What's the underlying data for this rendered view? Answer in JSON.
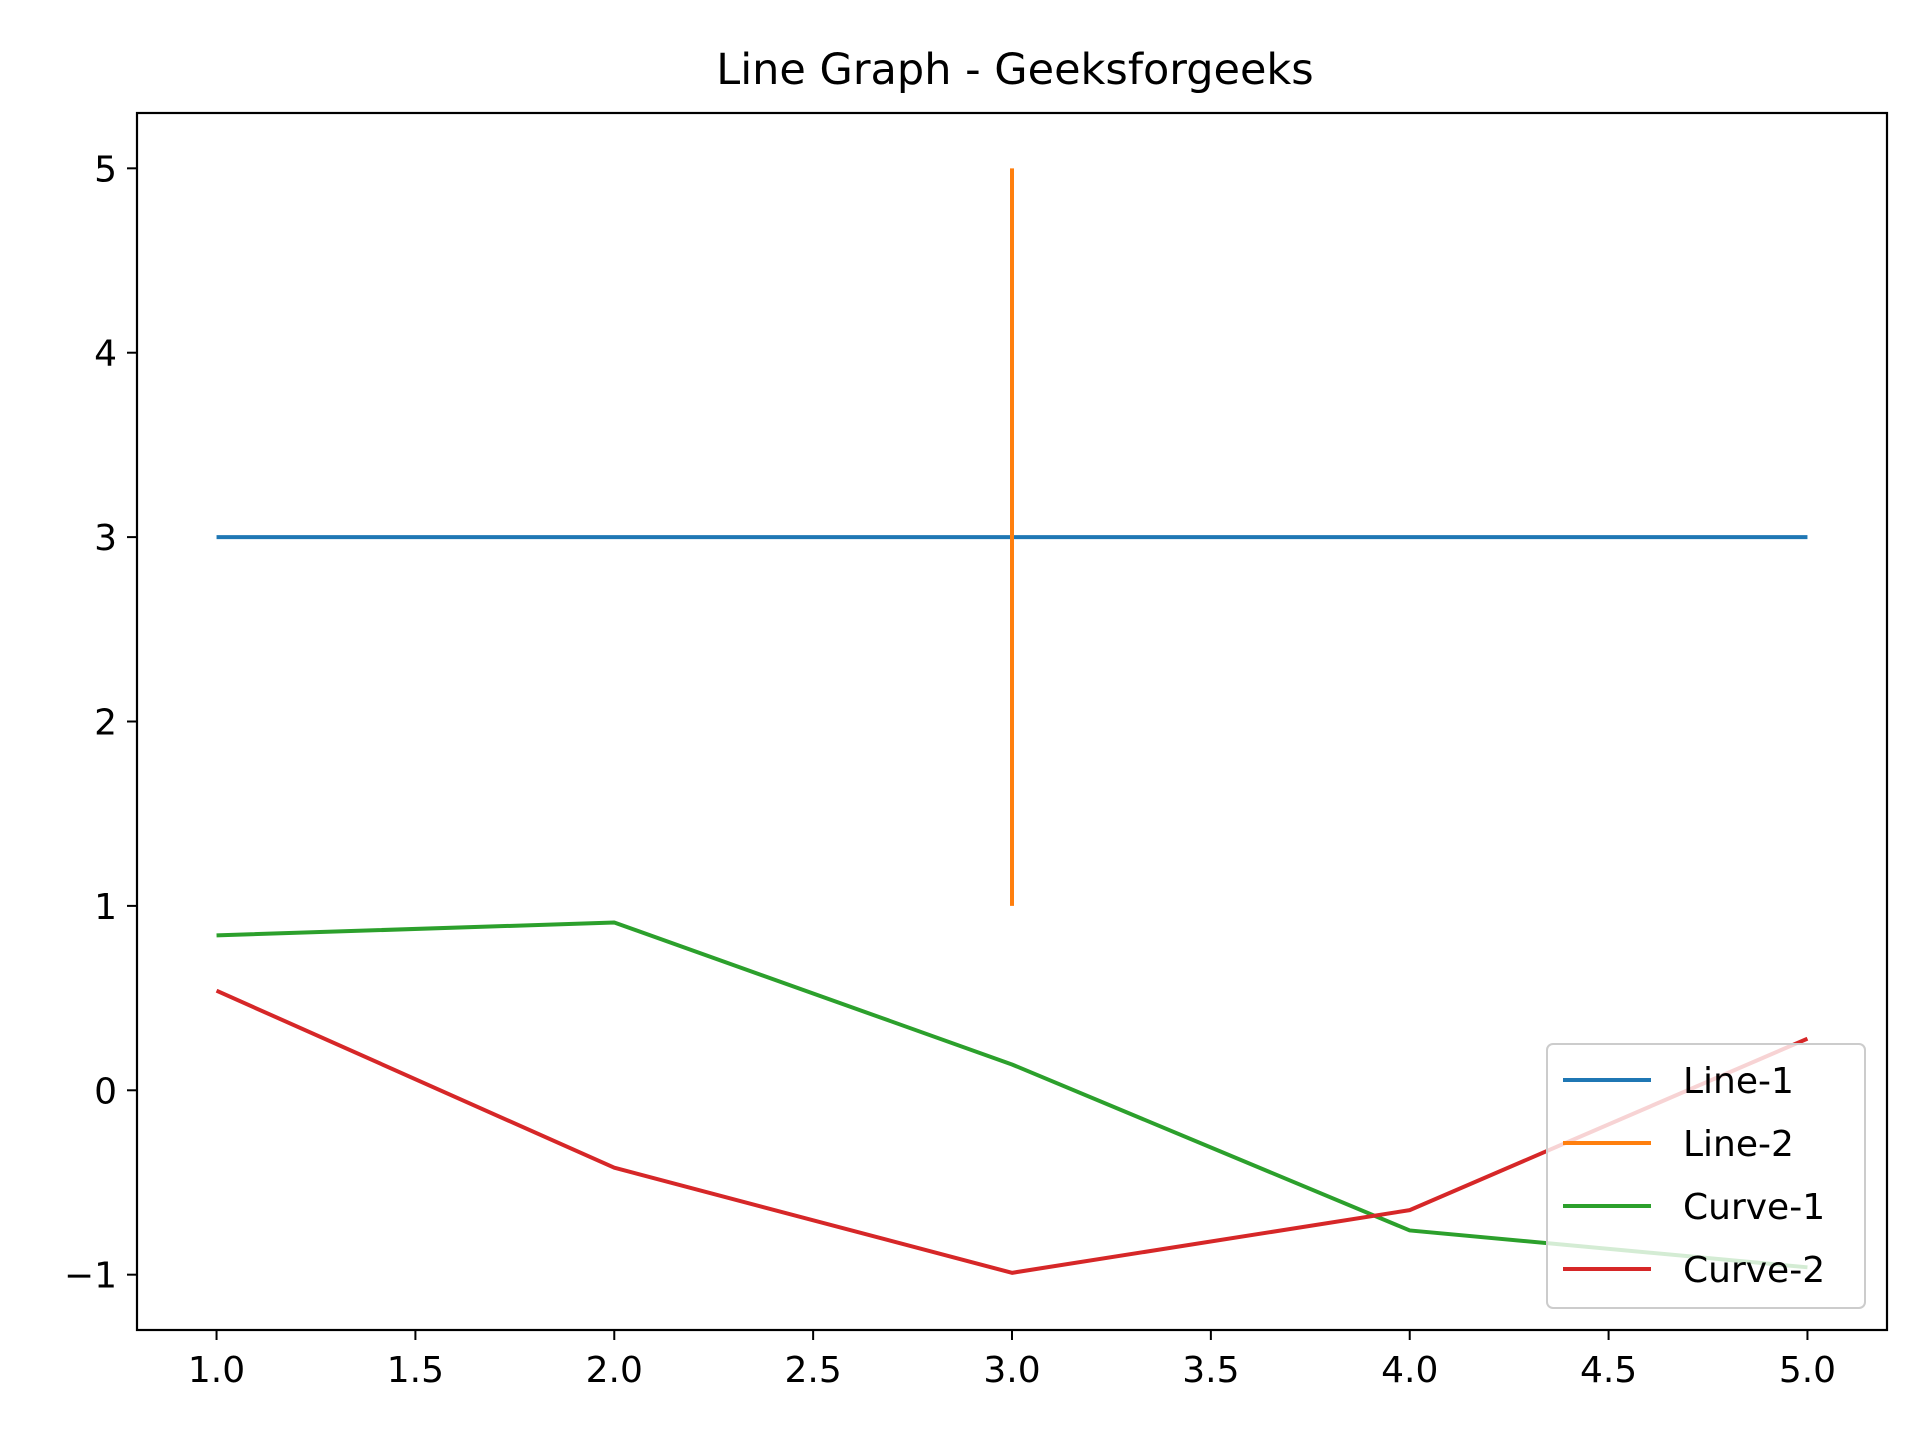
{
  "chart_data": {
    "type": "line",
    "title": "Line Graph - Geeksforgeeks",
    "xlabel": "",
    "ylabel": "",
    "xlim": [
      0.8,
      5.2
    ],
    "ylim": [
      -1.3,
      5.3
    ],
    "xticks": [
      1.0,
      1.5,
      2.0,
      2.5,
      3.0,
      3.5,
      4.0,
      4.5,
      5.0
    ],
    "xtick_labels": [
      "1.0",
      "1.5",
      "2.0",
      "2.5",
      "3.0",
      "3.5",
      "4.0",
      "4.5",
      "5.0"
    ],
    "yticks": [
      -1,
      0,
      1,
      2,
      3,
      4,
      5
    ],
    "ytick_labels": [
      "−1",
      "0",
      "1",
      "2",
      "3",
      "4",
      "5"
    ],
    "grid": false,
    "legend_position": "lower-right",
    "series": [
      {
        "name": "Line-1",
        "color": "#1f77b4",
        "x": [
          1,
          2,
          3,
          4,
          5
        ],
        "y": [
          3,
          3,
          3,
          3,
          3
        ]
      },
      {
        "name": "Line-2",
        "color": "#ff7f0e",
        "x": [
          3,
          3,
          3,
          3,
          3
        ],
        "y": [
          1,
          2,
          3,
          4,
          5
        ]
      },
      {
        "name": "Curve-1",
        "color": "#2ca02c",
        "x": [
          1,
          2,
          3,
          4,
          5
        ],
        "y": [
          0.84,
          0.91,
          0.14,
          -0.76,
          -0.96
        ]
      },
      {
        "name": "Curve-2",
        "color": "#d62728",
        "x": [
          1,
          2,
          3,
          4,
          5
        ],
        "y": [
          0.54,
          -0.42,
          -0.99,
          -0.65,
          0.28
        ]
      }
    ]
  }
}
